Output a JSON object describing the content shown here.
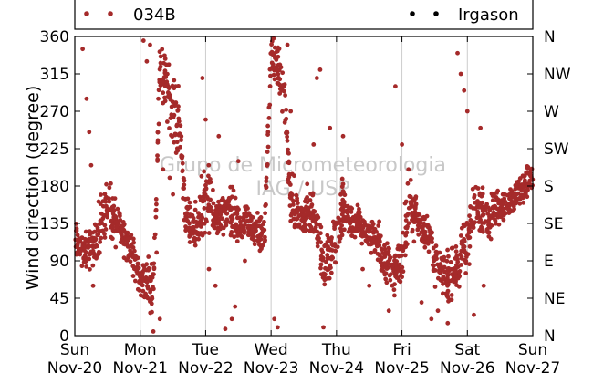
{
  "chart_data": {
    "type": "scatter",
    "ylabel": "Wind direction (degree)",
    "ylim": [
      0,
      360
    ],
    "yticks": [
      "0",
      "45",
      "90",
      "135",
      "180",
      "225",
      "270",
      "315",
      "360"
    ],
    "right_ticks": [
      "N",
      "NE",
      "E",
      "SE",
      "S",
      "SW",
      "W",
      "NW",
      "N"
    ],
    "x_ticks": [
      {
        "day": "Sun",
        "date": "Nov-20"
      },
      {
        "day": "Mon",
        "date": "Nov-21"
      },
      {
        "day": "Tue",
        "date": "Nov-22"
      },
      {
        "day": "Wed",
        "date": "Nov-23"
      },
      {
        "day": "Thu",
        "date": "Nov-24"
      },
      {
        "day": "Fri",
        "date": "Nov-25"
      },
      {
        "day": "Sat",
        "date": "Nov-26"
      },
      {
        "day": "Sun",
        "date": "Nov-27"
      }
    ],
    "xlim_days": [
      0,
      7
    ],
    "grid": "vertical",
    "legend": [
      {
        "name": "034B",
        "color": "#a52a2a"
      },
      {
        "name": "Irgason",
        "color": "#000000"
      }
    ],
    "watermark": [
      "Grupo de Micrometeorologia",
      "IAG / USP"
    ],
    "series": [
      {
        "name": "034B",
        "color": "#a52a2a",
        "bands": [
          [
            0.0,
            115,
            25
          ],
          [
            0.1,
            105,
            20
          ],
          [
            0.2,
            100,
            25
          ],
          [
            0.3,
            110,
            25
          ],
          [
            0.4,
            140,
            40
          ],
          [
            0.5,
            150,
            40
          ],
          [
            0.6,
            140,
            30
          ],
          [
            0.7,
            130,
            25
          ],
          [
            0.8,
            115,
            25
          ],
          [
            0.9,
            90,
            30
          ],
          [
            1.0,
            70,
            25
          ],
          [
            1.1,
            65,
            30
          ],
          [
            1.2,
            60,
            30
          ],
          [
            1.3,
            320,
            35
          ],
          [
            1.4,
            300,
            40
          ],
          [
            1.5,
            275,
            40
          ],
          [
            1.6,
            255,
            40
          ],
          [
            1.7,
            140,
            30
          ],
          [
            1.8,
            125,
            25
          ],
          [
            1.9,
            140,
            40
          ],
          [
            2.0,
            170,
            45
          ],
          [
            2.1,
            150,
            30
          ],
          [
            2.2,
            140,
            30
          ],
          [
            2.3,
            145,
            25
          ],
          [
            2.4,
            145,
            35
          ],
          [
            2.5,
            130,
            30
          ],
          [
            2.6,
            135,
            25
          ],
          [
            2.7,
            130,
            20
          ],
          [
            2.8,
            125,
            25
          ],
          [
            2.9,
            120,
            30
          ],
          [
            3.0,
            340,
            25
          ],
          [
            3.1,
            320,
            35
          ],
          [
            3.2,
            290,
            30
          ],
          [
            3.3,
            165,
            35
          ],
          [
            3.4,
            145,
            30
          ],
          [
            3.5,
            140,
            30
          ],
          [
            3.6,
            150,
            35
          ],
          [
            3.7,
            145,
            30
          ],
          [
            3.8,
            75,
            30
          ],
          [
            3.9,
            95,
            35
          ],
          [
            4.0,
            125,
            40
          ],
          [
            4.1,
            160,
            40
          ],
          [
            4.2,
            140,
            25
          ],
          [
            4.3,
            135,
            25
          ],
          [
            4.4,
            130,
            20
          ],
          [
            4.5,
            120,
            20
          ],
          [
            4.6,
            115,
            25
          ],
          [
            4.7,
            100,
            35
          ],
          [
            4.8,
            85,
            35
          ],
          [
            4.9,
            80,
            30
          ],
          [
            5.0,
            90,
            35
          ],
          [
            5.1,
            150,
            40
          ],
          [
            5.2,
            150,
            30
          ],
          [
            5.3,
            130,
            25
          ],
          [
            5.4,
            125,
            25
          ],
          [
            5.5,
            90,
            30
          ],
          [
            5.6,
            75,
            30
          ],
          [
            5.7,
            70,
            30
          ],
          [
            5.8,
            75,
            30
          ],
          [
            5.9,
            90,
            35
          ],
          [
            6.0,
            110,
            40
          ],
          [
            6.1,
            160,
            40
          ],
          [
            6.2,
            150,
            30
          ],
          [
            6.3,
            145,
            30
          ],
          [
            6.4,
            150,
            25
          ],
          [
            6.5,
            155,
            20
          ],
          [
            6.6,
            160,
            20
          ],
          [
            6.7,
            165,
            20
          ],
          [
            6.8,
            175,
            20
          ],
          [
            6.9,
            185,
            20
          ],
          [
            7.0,
            190,
            15
          ]
        ],
        "outliers": [
          [
            0.12,
            345
          ],
          [
            0.18,
            285
          ],
          [
            0.22,
            245
          ],
          [
            0.25,
            205
          ],
          [
            0.28,
            60
          ],
          [
            1.05,
            355
          ],
          [
            1.1,
            330
          ],
          [
            1.15,
            350
          ],
          [
            1.2,
            5
          ],
          [
            1.25,
            100
          ],
          [
            1.3,
            20
          ],
          [
            1.35,
            200
          ],
          [
            1.45,
            190
          ],
          [
            1.5,
            170
          ],
          [
            1.55,
            220
          ],
          [
            1.95,
            310
          ],
          [
            2.0,
            260
          ],
          [
            2.05,
            80
          ],
          [
            2.15,
            60
          ],
          [
            2.2,
            240
          ],
          [
            2.3,
            8
          ],
          [
            2.4,
            20
          ],
          [
            2.45,
            35
          ],
          [
            2.5,
            210
          ],
          [
            2.6,
            90
          ],
          [
            2.75,
            110
          ],
          [
            3.05,
            20
          ],
          [
            3.1,
            10
          ],
          [
            3.25,
            350
          ],
          [
            3.3,
            270
          ],
          [
            3.65,
            230
          ],
          [
            3.7,
            310
          ],
          [
            3.75,
            320
          ],
          [
            3.8,
            10
          ],
          [
            3.9,
            250
          ],
          [
            4.1,
            240
          ],
          [
            4.4,
            80
          ],
          [
            4.5,
            60
          ],
          [
            4.8,
            30
          ],
          [
            4.9,
            300
          ],
          [
            5.0,
            230
          ],
          [
            5.1,
            200
          ],
          [
            5.3,
            40
          ],
          [
            5.45,
            20
          ],
          [
            5.55,
            30
          ],
          [
            5.7,
            15
          ],
          [
            5.85,
            340
          ],
          [
            5.9,
            315
          ],
          [
            5.95,
            295
          ],
          [
            6.0,
            270
          ],
          [
            6.1,
            25
          ],
          [
            6.2,
            250
          ],
          [
            6.25,
            60
          ]
        ]
      },
      {
        "name": "Irgason",
        "color": "#000000",
        "bands": [],
        "outliers": []
      }
    ]
  }
}
